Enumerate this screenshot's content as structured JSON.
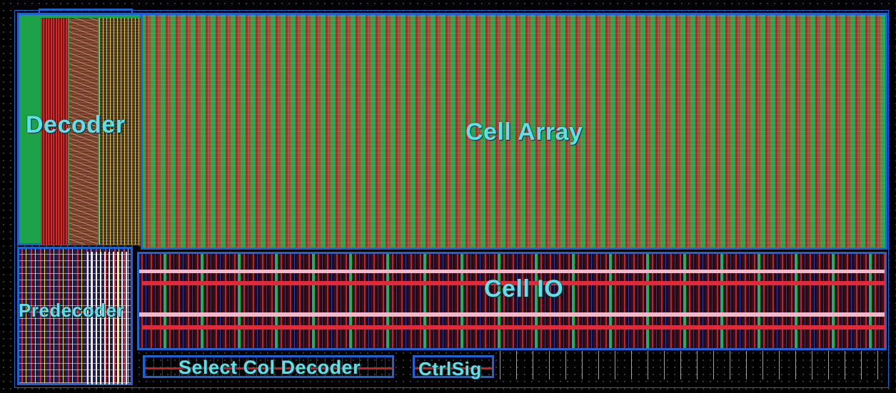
{
  "labels": {
    "decoder": "Decoder",
    "cell_array": "Cell Array",
    "predecoder": "Predecoder",
    "cell_io": "Cell IO",
    "select_col_decoder": "Select Col Decoder",
    "ctrl_sig": "CtrlSig"
  },
  "colors": {
    "block_outline": "#1e63d6",
    "label_text": "#5fe0e8",
    "metal_green": "#22a84e",
    "metal_red": "#c81f26",
    "background": "#000000"
  }
}
